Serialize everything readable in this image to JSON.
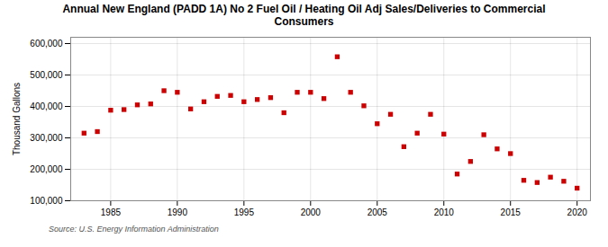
{
  "chart_data": {
    "type": "scatter",
    "title": "Annual New England (PADD 1A) No 2 Fuel Oil / Heating Oil Adj Sales/Deliveries to Commercial\nConsumers",
    "ylabel": "Thousand Gallons",
    "source": "Source: U.S. Energy Information Administration",
    "x": [
      1983,
      1984,
      1985,
      1986,
      1987,
      1988,
      1989,
      1990,
      1991,
      1992,
      1993,
      1994,
      1995,
      1996,
      1997,
      1998,
      1999,
      2000,
      2001,
      2002,
      2003,
      2004,
      2005,
      2006,
      2007,
      2008,
      2009,
      2010,
      2011,
      2012,
      2013,
      2014,
      2015,
      2016,
      2017,
      2018,
      2019,
      2020
    ],
    "values": [
      315000,
      320000,
      388000,
      390000,
      405000,
      408000,
      450000,
      445000,
      392000,
      415000,
      432000,
      435000,
      415000,
      422000,
      428000,
      380000,
      445000,
      445000,
      425000,
      558000,
      445000,
      402000,
      345000,
      375000,
      272000,
      315000,
      375000,
      312000,
      185000,
      225000,
      310000,
      265000,
      250000,
      165000,
      158000,
      175000,
      162000,
      140000
    ],
    "color": "#cc0000",
    "marker": "square",
    "xlim": [
      1982,
      2021
    ],
    "xticks": [
      1985,
      1990,
      1995,
      2000,
      2005,
      2010,
      2015,
      2020
    ],
    "ylim": [
      100000,
      620000
    ],
    "yticks": [
      {
        "value": 100000,
        "label": "100,000"
      },
      {
        "value": 200000,
        "label": "200,000"
      },
      {
        "value": 300000,
        "label": "300,000"
      },
      {
        "value": 400000,
        "label": "400,000"
      },
      {
        "value": 500000,
        "label": "500,000"
      },
      {
        "value": 600000,
        "label": "600,000"
      }
    ],
    "grid": true
  }
}
